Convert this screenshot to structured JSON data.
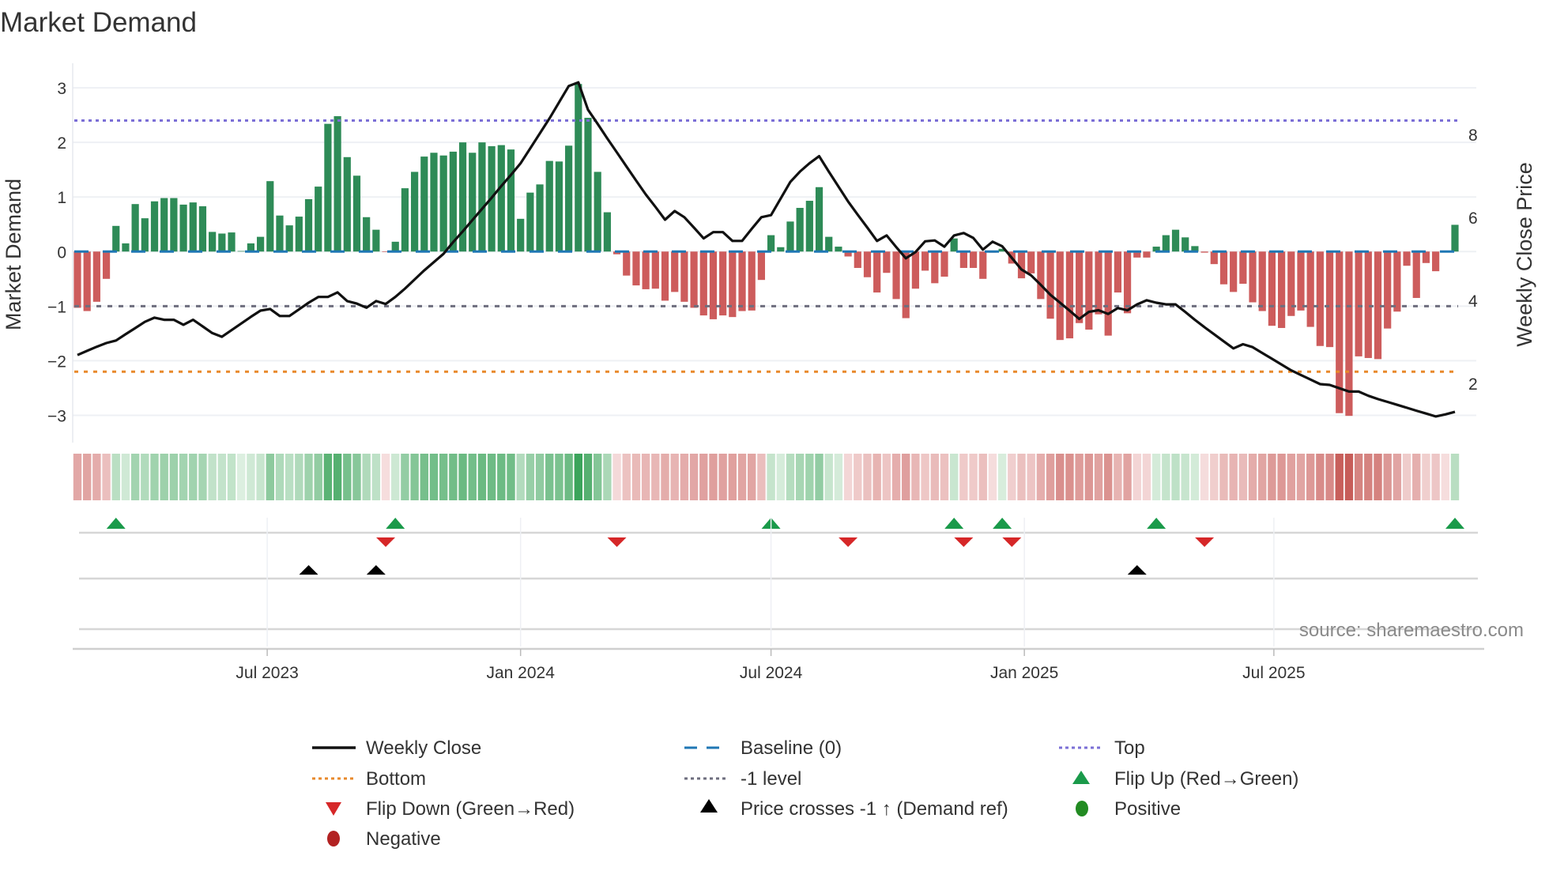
{
  "chart_data": {
    "type": "bar+line",
    "title": "Market Demand",
    "ylabel": "Market Demand",
    "y2label": "Weekly Close Price",
    "ylim": [
      -3.5,
      3.45
    ],
    "y2lim": [
      0.57,
      9.71
    ],
    "yticks": [
      -3,
      -2,
      -1,
      0,
      1,
      2,
      3
    ],
    "ytick_labels": [
      "−3",
      "−2",
      "−1",
      "0",
      "1",
      "2",
      "3"
    ],
    "y2ticks": [
      2,
      4,
      6,
      8
    ],
    "y2tick_labels": [
      "2",
      "4",
      "6",
      "8"
    ],
    "x_unit": "week index",
    "xticks": [
      {
        "label": "Jul 2023",
        "week": 20.7
      },
      {
        "label": "Jan 2024",
        "week": 47.0
      },
      {
        "label": "Jul 2024",
        "week": 73.0
      },
      {
        "label": "Jan 2025",
        "week": 99.3
      },
      {
        "label": "Jul 2025",
        "week": 125.2
      }
    ],
    "reference_lines": {
      "top": 2.4,
      "bottom": -2.2,
      "minus_one": -1,
      "baseline": 0
    },
    "colors": {
      "positive_bar": "#2e8b57",
      "negative_bar": "#cd5c5c",
      "close": "#111111",
      "baseline": "#1f77b4",
      "top": "#7b6fd6",
      "bottom": "#e8892b",
      "minus_one": "#6e6e7e",
      "flip_up": "#1a9a4a",
      "flip_down": "#d62728",
      "price_cross": "#000000",
      "positive": "#228b22",
      "negative": "#b22222"
    },
    "demand": [
      -1.03,
      -1.09,
      -0.92,
      -0.5,
      0.47,
      0.15,
      0.87,
      0.61,
      0.92,
      0.98,
      0.98,
      0.86,
      0.9,
      0.83,
      0.36,
      0.33,
      0.35,
      0.01,
      0.15,
      0.27,
      1.29,
      0.66,
      0.48,
      0.64,
      0.96,
      1.19,
      2.34,
      2.48,
      1.73,
      1.39,
      0.63,
      0.4,
      -0.01,
      0.18,
      1.16,
      1.46,
      1.74,
      1.81,
      1.76,
      1.83,
      2.0,
      1.81,
      2.0,
      1.93,
      1.95,
      1.87,
      0.6,
      1.08,
      1.23,
      1.66,
      1.65,
      1.94,
      3.07,
      2.45,
      1.46,
      0.72,
      -0.05,
      -0.44,
      -0.62,
      -0.69,
      -0.68,
      -0.9,
      -0.74,
      -0.92,
      -1.03,
      -1.17,
      -1.24,
      -1.17,
      -1.2,
      -1.09,
      -1.08,
      -0.52,
      0.3,
      0.08,
      0.55,
      0.8,
      0.93,
      1.18,
      0.27,
      0.09,
      -0.09,
      -0.3,
      -0.47,
      -0.75,
      -0.39,
      -0.87,
      -1.22,
      -0.68,
      -0.35,
      -0.58,
      -0.46,
      0.24,
      -0.3,
      -0.3,
      -0.5,
      -0.02,
      0.05,
      -0.22,
      -0.49,
      -0.4,
      -0.87,
      -1.23,
      -1.62,
      -1.59,
      -1.31,
      -1.43,
      -1.15,
      -1.54,
      -0.75,
      -1.13,
      -0.11,
      -0.11,
      0.09,
      0.3,
      0.4,
      0.26,
      0.1,
      -0.02,
      -0.23,
      -0.6,
      -0.74,
      -0.59,
      -0.93,
      -1.09,
      -1.36,
      -1.4,
      -1.18,
      -1.08,
      -1.38,
      -1.73,
      -1.75,
      -2.96,
      -3.01,
      -1.92,
      -1.95,
      -1.97,
      -1.41,
      -1.1,
      -0.26,
      -0.85,
      -0.21,
      -0.36,
      -0.01,
      0.49
    ],
    "weekly_close": [
      2.68,
      2.78,
      2.88,
      2.97,
      3.03,
      3.18,
      3.33,
      3.48,
      3.58,
      3.53,
      3.53,
      3.41,
      3.53,
      3.37,
      3.21,
      3.12,
      3.28,
      3.44,
      3.6,
      3.75,
      3.79,
      3.62,
      3.62,
      3.78,
      3.94,
      4.08,
      4.08,
      4.19,
      3.98,
      3.92,
      3.82,
      3.98,
      3.91,
      4.08,
      4.28,
      4.5,
      4.72,
      4.92,
      5.12,
      5.4,
      5.66,
      5.93,
      6.2,
      6.47,
      6.75,
      7.02,
      7.3,
      7.66,
      8.02,
      8.38,
      8.77,
      9.16,
      9.25,
      8.59,
      8.25,
      7.9,
      7.56,
      7.22,
      6.88,
      6.55,
      6.25,
      5.94,
      6.15,
      6.0,
      5.75,
      5.49,
      5.64,
      5.64,
      5.43,
      5.43,
      5.72,
      6.0,
      6.05,
      6.45,
      6.85,
      7.1,
      7.3,
      7.47,
      7.1,
      6.74,
      6.38,
      6.06,
      5.75,
      5.43,
      5.56,
      5.28,
      5.01,
      5.16,
      5.42,
      5.44,
      5.29,
      5.56,
      5.62,
      5.5,
      5.22,
      5.41,
      5.3,
      5.02,
      4.74,
      4.6,
      4.37,
      4.13,
      3.94,
      3.75,
      3.55,
      3.72,
      3.76,
      3.67,
      3.81,
      3.76,
      3.9,
      4.0,
      3.94,
      3.9,
      3.9,
      3.72,
      3.53,
      3.35,
      3.18,
      3.01,
      2.84,
      2.94,
      2.87,
      2.73,
      2.59,
      2.45,
      2.31,
      2.2,
      2.09,
      1.98,
      1.96,
      1.88,
      1.8,
      1.8,
      1.7,
      1.62,
      1.55,
      1.48,
      1.41,
      1.34,
      1.27,
      1.2,
      1.25,
      1.31
    ],
    "flip_up_weeks": [
      5,
      34,
      73,
      92,
      97,
      113,
      144
    ],
    "flip_down_weeks": [
      33,
      57,
      81,
      93,
      98,
      118
    ],
    "price_cross_weeks": [
      25,
      32,
      111
    ],
    "legend": {
      "weekly_close": "Weekly Close",
      "baseline": "Baseline (0)",
      "top": "Top",
      "bottom": "Bottom",
      "minus_one": "-1 level",
      "flip_up": "Flip Up (Red→Green)",
      "flip_down": "Flip Down (Green→Red)",
      "price_cross": "Price crosses -1 ↑ (Demand ref)",
      "positive": "Positive",
      "negative": "Negative"
    },
    "source": "source: sharemaestro.com"
  }
}
